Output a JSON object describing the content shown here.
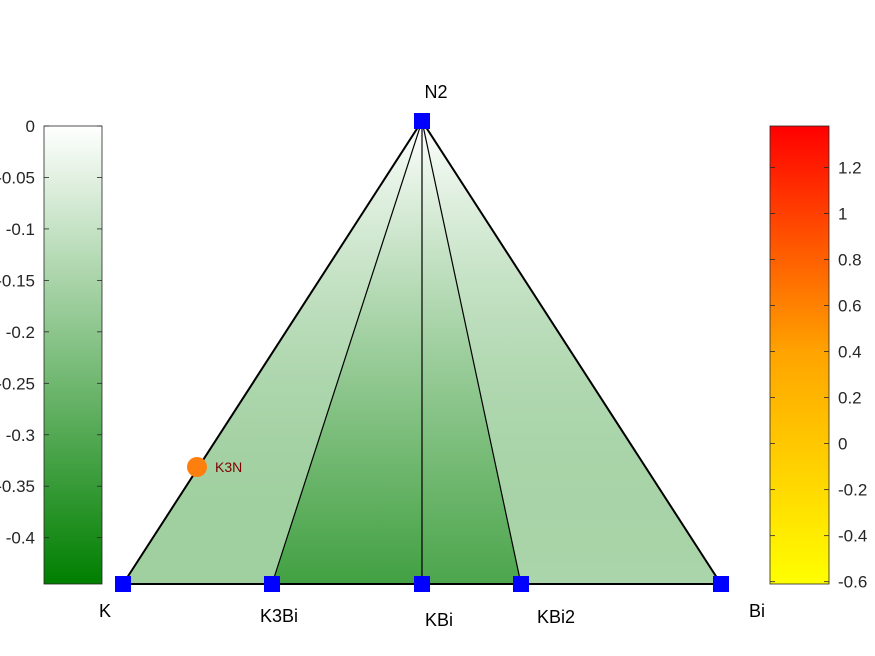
{
  "chart_data": {
    "type": "ternary-phase-diagram",
    "vertices": [
      {
        "label": "K"
      },
      {
        "label": "Bi"
      },
      {
        "label": "N2"
      }
    ],
    "stable_phases": [
      {
        "label": "K3Bi"
      },
      {
        "label": "KBi"
      },
      {
        "label": "KBi2"
      }
    ],
    "unstable_phases": [
      {
        "label": "K3N"
      }
    ],
    "tie_lines": [
      [
        "N2",
        "K3Bi"
      ],
      [
        "N2",
        "KBi"
      ],
      [
        "N2",
        "KBi2"
      ]
    ],
    "left_colorbar": {
      "colors": [
        "#007f00",
        "#ffffff"
      ],
      "range": [
        -0.445,
        0
      ],
      "ticks": [
        "0",
        "-0.05",
        "-0.1",
        "-0.15",
        "-0.2",
        "-0.25",
        "-0.3",
        "-0.35",
        "-0.4"
      ],
      "tick_values": [
        0,
        -0.05,
        -0.1,
        -0.15,
        -0.2,
        -0.25,
        -0.3,
        -0.35,
        -0.4
      ]
    },
    "right_colorbar": {
      "colors": [
        "#ffff00",
        "#ffa500",
        "#ff0000"
      ],
      "range": [
        -0.61,
        1.38
      ],
      "ticks": [
        "1.2",
        "1",
        "0.8",
        "0.6",
        "0.4",
        "0.2",
        "0",
        "-0.2",
        "-0.4",
        "-0.6"
      ],
      "tick_values": [
        1.2,
        1,
        0.8,
        0.6,
        0.4,
        0.2,
        0,
        -0.2,
        -0.4,
        -0.6
      ]
    },
    "colors": {
      "stable_marker": "#0000ff",
      "unstable_marker": "#ff7f0e",
      "unstable_label": "#7f0000",
      "edges": "#000000"
    }
  }
}
